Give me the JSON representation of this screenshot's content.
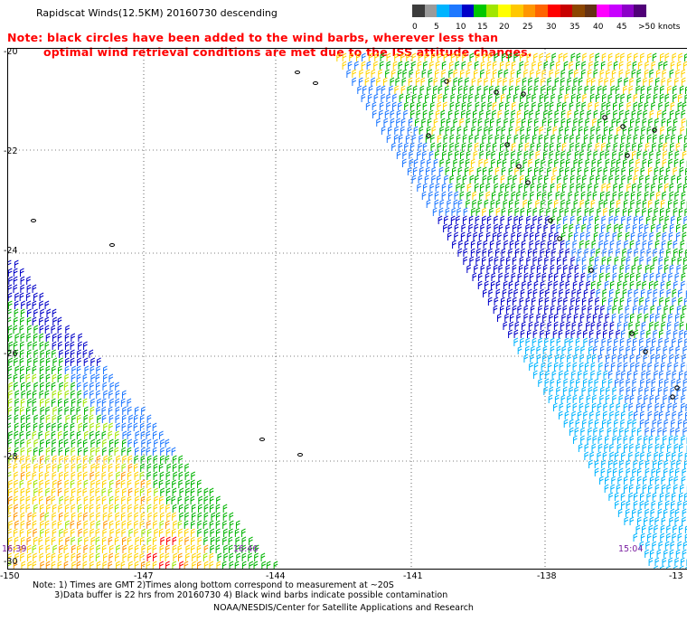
{
  "title": "Rapidscat Winds(12.5KM) 20160730 descending",
  "note": {
    "line1": "Note: black circles have been added to the wind barbs, wherever less than",
    "line2": "optimal wind retrieval conditions are met due to the ISS attitude changes."
  },
  "legend": {
    "labels": [
      "0",
      "5",
      "10",
      "15",
      "20",
      "25",
      "30",
      "35",
      "40",
      "45",
      ">50 knots"
    ],
    "colors": [
      "#3c3c3c",
      "#9a9a9a",
      "#00b4ff",
      "#1e78ff",
      "#0000c8",
      "#00c800",
      "#a0e600",
      "#ffff00",
      "#ffc800",
      "#ff9600",
      "#ff6400",
      "#ff0000",
      "#c80000",
      "#8c4600",
      "#643214",
      "#ff00ff",
      "#c800ff",
      "#8c00c8",
      "#500078"
    ]
  },
  "axes": {
    "y_labels": [
      "-20",
      "-22",
      "-24",
      "-26",
      "-28",
      "-30"
    ],
    "x_labels": [
      "-150",
      "-147",
      "-144",
      "-141",
      "-138",
      "-13"
    ]
  },
  "pass_times": [
    "16:39",
    "16:46",
    "15:04"
  ],
  "footnote": {
    "line1": "Note: 1) Times are GMT 2)Times along bottom correspond to measurement at ~20S",
    "line2": "        3)Data buffer is 22 hrs from 20160730 4) Black wind barbs indicate possible contamination"
  },
  "credit": "NOAA/NESDIS/Center for Satellite Applications and Research"
}
